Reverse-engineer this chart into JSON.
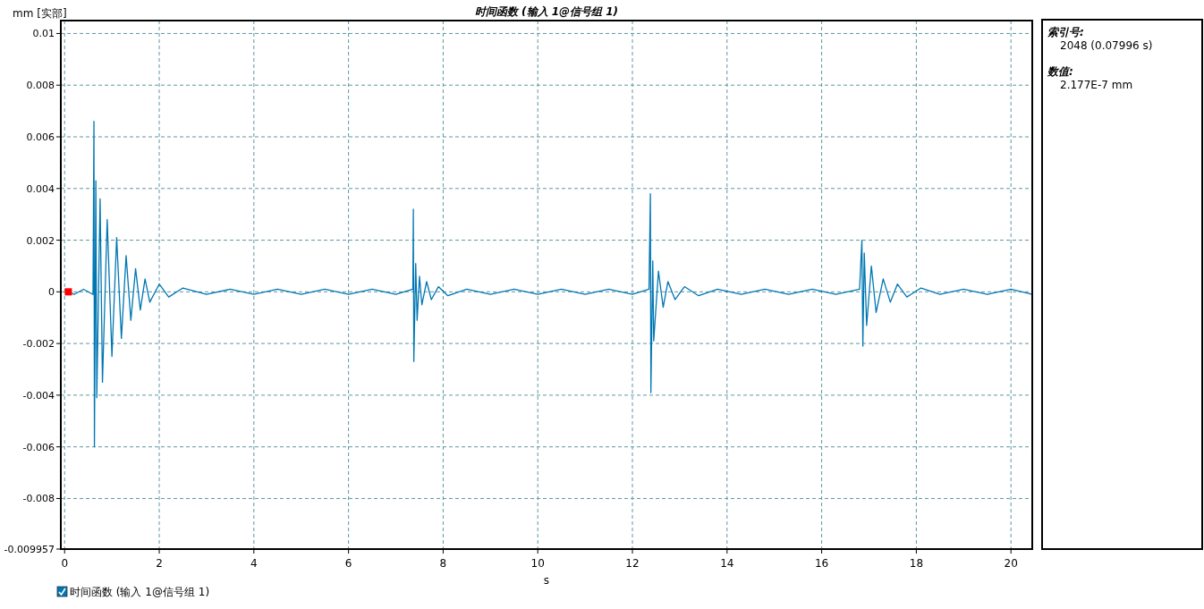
{
  "chart_data": {
    "type": "line",
    "title": "时间函数 (输入 1@信号组 1)",
    "xlabel": "s",
    "ylabel": "mm [实部]",
    "xlim": [
      -0.08,
      20.45
    ],
    "ylim": [
      -0.009957,
      0.0105
    ],
    "xticks": [
      0,
      2,
      4,
      6,
      8,
      10,
      12,
      14,
      16,
      18,
      20
    ],
    "yticks": [
      0.01,
      0.008,
      0.006,
      0.004,
      0.002,
      0,
      -0.002,
      -0.004,
      -0.006,
      -0.008,
      -0.009957
    ],
    "grid": true,
    "legend": "bottom left",
    "line_style": "solid",
    "annotations": [
      "索引号:",
      "2048 (0.07996 s)",
      "数值:",
      "2.177E-7 mm"
    ],
    "series": [
      {
        "name": "时间函数 (输入 1@信号组 1)",
        "color": "#0077b3",
        "x": [
          0,
          0.2,
          0.4,
          0.6,
          0.62,
          0.63,
          0.66,
          0.68,
          0.75,
          0.8,
          0.9,
          1.0,
          1.1,
          1.2,
          1.3,
          1.4,
          1.5,
          1.6,
          1.7,
          1.8,
          2.0,
          2.2,
          2.5,
          3.0,
          3.5,
          4.0,
          4.5,
          5.0,
          5.5,
          6.0,
          6.5,
          7.0,
          7.36,
          7.37,
          7.38,
          7.42,
          7.45,
          7.5,
          7.55,
          7.65,
          7.75,
          7.9,
          8.1,
          8.5,
          9.0,
          9.5,
          10.0,
          10.5,
          11.0,
          11.5,
          12.0,
          12.35,
          12.38,
          12.39,
          12.43,
          12.45,
          12.55,
          12.65,
          12.75,
          12.9,
          13.1,
          13.4,
          13.8,
          14.3,
          14.8,
          15.3,
          15.8,
          16.3,
          16.8,
          16.85,
          16.87,
          16.9,
          16.95,
          17.05,
          17.15,
          17.3,
          17.45,
          17.6,
          17.8,
          18.1,
          18.5,
          19.0,
          19.5,
          20.0,
          20.45
        ],
        "values": [
          0.0001,
          -0.0001,
          0.0001,
          -0.0001,
          0.0066,
          -0.006,
          0.0043,
          -0.0041,
          0.0036,
          -0.0035,
          0.0028,
          -0.0025,
          0.0021,
          -0.0018,
          0.0014,
          -0.0011,
          0.0009,
          -0.0007,
          0.0005,
          -0.0004,
          0.0003,
          -0.0002,
          0.00015,
          -0.0001,
          0.0001,
          -0.0001,
          0.0001,
          -0.0001,
          0.0001,
          -0.0001,
          0.0001,
          -0.0001,
          0.0001,
          0.0032,
          -0.0027,
          0.0011,
          -0.0011,
          0.0006,
          -0.0005,
          0.0004,
          -0.0003,
          0.0002,
          -0.00015,
          0.0001,
          -0.0001,
          0.0001,
          -0.0001,
          0.0001,
          -0.0001,
          0.0001,
          -0.0001,
          0.0001,
          0.0038,
          -0.0039,
          0.0012,
          -0.0019,
          0.0008,
          -0.0006,
          0.0004,
          -0.0003,
          0.0002,
          -0.00015,
          0.0001,
          -0.0001,
          0.0001,
          -0.0001,
          0.0001,
          -0.0001,
          0.0001,
          0.002,
          -0.0021,
          0.0015,
          -0.0013,
          0.001,
          -0.0008,
          0.0005,
          -0.0004,
          0.0003,
          -0.0002,
          0.00015,
          -0.0001,
          0.0001,
          -0.0001,
          0.0001,
          -0.0001
        ]
      },
      {
        "type": "scatter",
        "color": "#ff0000",
        "marker": "square",
        "x": [
          0.07996
        ],
        "values": [
          2.177e-07
        ]
      }
    ]
  }
}
